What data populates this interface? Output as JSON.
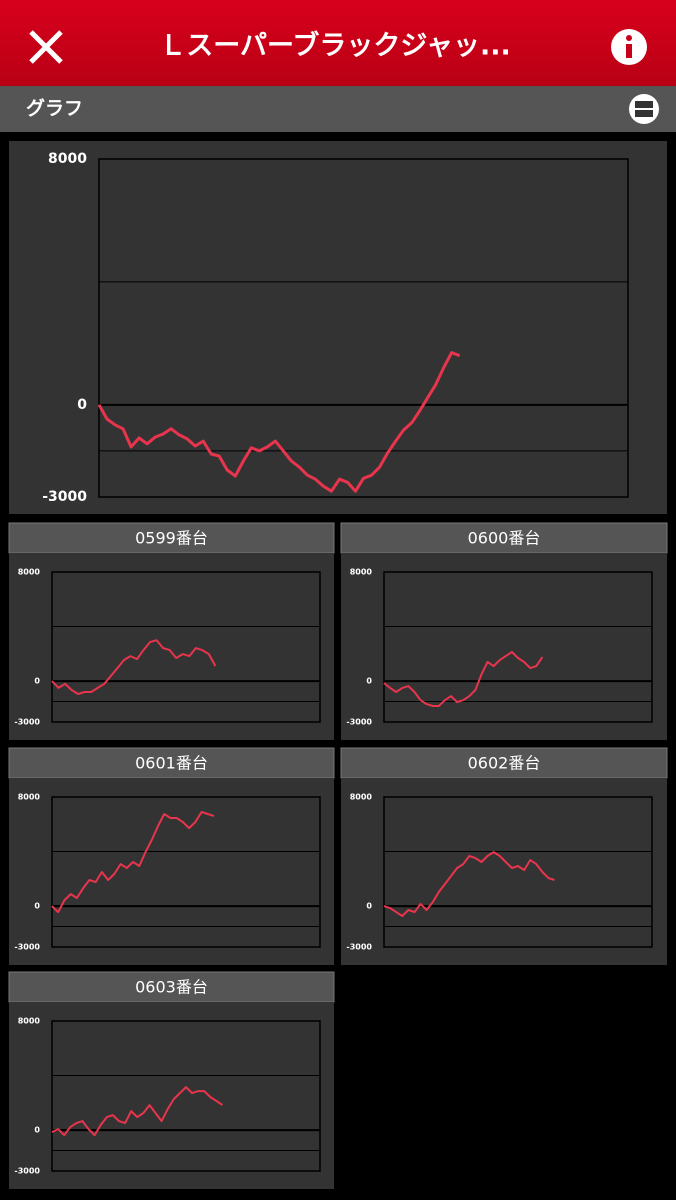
{
  "header": {
    "title": "Ｌスーパーブラックジャッ..."
  },
  "section": {
    "title": "グラフ"
  },
  "chart_data": [
    {
      "type": "line",
      "color": "#e8354d",
      "ylim": [
        -3000,
        8000
      ],
      "yticks": [
        -3000,
        0,
        8000
      ],
      "grid_lines": [
        -1500,
        4000
      ],
      "xlim": [
        0,
        66
      ],
      "values": [
        0,
        -460,
        -650,
        -780,
        -1370,
        -1080,
        -1270,
        -1050,
        -950,
        -780,
        -980,
        -1110,
        -1340,
        -1180,
        -1600,
        -1670,
        -2120,
        -2320,
        -1830,
        -1400,
        -1500,
        -1370,
        -1180,
        -1500,
        -1830,
        -2030,
        -2290,
        -2420,
        -2650,
        -2810,
        -2420,
        -2520,
        -2810,
        -2390,
        -2290,
        -2030,
        -1570,
        -1180,
        -820,
        -590,
        -200,
        230,
        650,
        1210,
        1700,
        1600
      ]
    },
    {
      "type": "line",
      "title": "0599番台",
      "color": "#e8354d",
      "ylim": [
        -3000,
        8000
      ],
      "yticks": [
        -3000,
        0,
        8000
      ],
      "grid_lines": [
        -1500,
        4000
      ],
      "xlim": [
        0,
        41
      ],
      "values": [
        0,
        -500,
        -200,
        -650,
        -950,
        -800,
        -800,
        -500,
        -200,
        370,
        950,
        1540,
        1830,
        1610,
        2270,
        2860,
        3000,
        2420,
        2270,
        1690,
        1980,
        1830,
        2420,
        2270,
        1980,
        1100
      ]
    },
    {
      "type": "line",
      "title": "0600番台",
      "color": "#e8354d",
      "ylim": [
        -3000,
        8000
      ],
      "yticks": [
        -3000,
        0,
        8000
      ],
      "grid_lines": [
        -1500,
        4000
      ],
      "xlim": [
        0,
        44
      ],
      "values": [
        -150,
        -500,
        -800,
        -500,
        -370,
        -800,
        -1400,
        -1690,
        -1830,
        -1830,
        -1400,
        -1100,
        -1540,
        -1400,
        -1100,
        -650,
        500,
        1400,
        1100,
        1540,
        1830,
        2130,
        1690,
        1400,
        950,
        1100,
        1760
      ]
    },
    {
      "type": "line",
      "title": "0601番台",
      "color": "#e8354d",
      "ylim": [
        -3000,
        8000
      ],
      "yticks": [
        -3000,
        0,
        8000
      ],
      "grid_lines": [
        -1500,
        4000
      ],
      "xlim": [
        0,
        43
      ],
      "values": [
        0,
        -440,
        440,
        880,
        590,
        1320,
        1910,
        1760,
        2500,
        1910,
        2350,
        3080,
        2790,
        3230,
        2940,
        3960,
        4840,
        5870,
        6750,
        6460,
        6460,
        6160,
        5720,
        6160,
        6900,
        6750,
        6600
      ]
    },
    {
      "type": "line",
      "title": "0602番台",
      "color": "#e8354d",
      "ylim": [
        -3000,
        8000
      ],
      "yticks": [
        -3000,
        0,
        8000
      ],
      "grid_lines": [
        -1500,
        4000
      ],
      "xlim": [
        0,
        44
      ],
      "values": [
        0,
        -150,
        -440,
        -730,
        -290,
        -440,
        150,
        -290,
        290,
        1030,
        1610,
        2200,
        2790,
        3080,
        3670,
        3520,
        3230,
        3670,
        3960,
        3670,
        3230,
        2790,
        2940,
        2640,
        3370,
        3080,
        2500,
        2050,
        1910
      ]
    },
    {
      "type": "line",
      "title": "0603番台",
      "color": "#e8354d",
      "ylim": [
        -3000,
        8000
      ],
      "yticks": [
        -3000,
        0,
        8000
      ],
      "grid_lines": [
        -1500,
        4000
      ],
      "xlim": [
        0,
        44
      ],
      "values": [
        -150,
        70,
        -370,
        220,
        510,
        660,
        70,
        -370,
        370,
        950,
        1100,
        660,
        510,
        1390,
        950,
        1250,
        1830,
        1250,
        660,
        1540,
        2270,
        2710,
        3150,
        2710,
        2860,
        2860,
        2420,
        2130,
        1830
      ]
    }
  ]
}
